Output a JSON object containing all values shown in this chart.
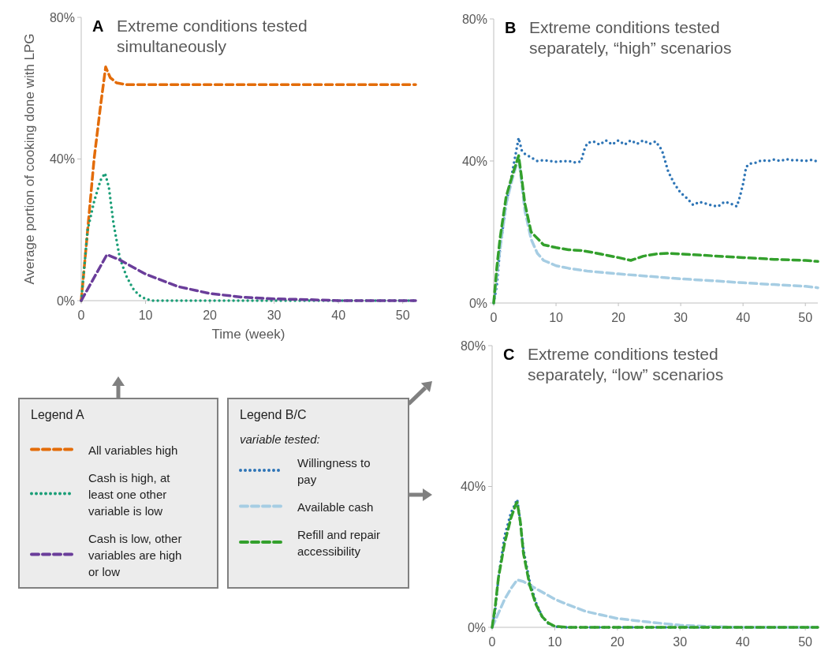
{
  "chart_data": [
    {
      "type": "line",
      "title": "Extreme conditions tested simultaneously",
      "xlabel": "Time (week)",
      "ylabel": "Average portion of cooking done with LPG",
      "annotations": [
        "A"
      ],
      "legend_title": "Legend A",
      "legend": "bottom",
      "xlim": [
        0,
        52
      ],
      "xticks": [
        0,
        10,
        20,
        30,
        40,
        50
      ],
      "ylim": [
        0,
        80
      ],
      "yticks": [
        {
          "value": 0,
          "label": "0%"
        },
        {
          "value": 40,
          "label": "40%"
        },
        {
          "value": 80,
          "label": "80%"
        }
      ],
      "series": [
        {
          "name": "All variables high",
          "color": "#e36c09",
          "line_style": "dashed",
          "x": [
            0,
            1,
            2,
            3,
            3.8,
            4.5,
            5.5,
            7,
            52
          ],
          "values": [
            0,
            20,
            40,
            55,
            66,
            63,
            61.5,
            61,
            61
          ]
        },
        {
          "name": "Cash is high, at least one other variable is low",
          "color": "#1a9e77",
          "line_style": "dotted",
          "x": [
            0,
            0.5,
            1,
            2,
            3,
            3.7,
            4.3,
            5,
            6,
            7,
            8,
            9,
            10,
            11,
            52
          ],
          "values": [
            0,
            10,
            20,
            28,
            34,
            36,
            32,
            22,
            12,
            7,
            3.5,
            1.5,
            0.5,
            0,
            0
          ]
        },
        {
          "name": "Cash is low, other variables are high or low",
          "color": "#6a3d9a",
          "line_style": "dashed",
          "x": [
            0,
            4,
            6,
            10,
            15,
            20,
            25,
            30,
            35,
            40,
            52
          ],
          "values": [
            0,
            13,
            11.5,
            7.5,
            4,
            2,
            1,
            0.5,
            0.3,
            0,
            0
          ]
        }
      ]
    },
    {
      "type": "line",
      "title": "Extreme conditions tested separately, “high” scenarios",
      "annotations": [
        "B",
        "variable tested:"
      ],
      "legend_title": "Legend B/C",
      "legend": "bottom left",
      "xlim": [
        0,
        52
      ],
      "xticks": [
        0,
        10,
        20,
        30,
        40,
        50
      ],
      "ylim": [
        0,
        80
      ],
      "yticks": [
        {
          "value": 0,
          "label": "0%"
        },
        {
          "value": 40,
          "label": "40%"
        },
        {
          "value": 80,
          "label": "80%"
        }
      ],
      "series": [
        {
          "name": "Willingness to pay",
          "color": "#2e75b6",
          "line_style": "dotted",
          "x": [
            0,
            0.5,
            1,
            2,
            3,
            4,
            4.5,
            5,
            6,
            7,
            8,
            10,
            12,
            13,
            14,
            14.5,
            15,
            16,
            17,
            18,
            19,
            20,
            21,
            22,
            23,
            24,
            25,
            26,
            27,
            28,
            29,
            30,
            31,
            32,
            33,
            34,
            35,
            36,
            37,
            38,
            39,
            39.5,
            40,
            40.5,
            41,
            42,
            43,
            44,
            45,
            46,
            47,
            48,
            49,
            50,
            51,
            52
          ],
          "values": [
            0,
            5,
            15,
            28,
            37,
            46.5,
            43,
            42,
            41,
            40,
            40.2,
            39.8,
            40,
            39.6,
            39.8,
            43,
            45,
            45.5,
            44.6,
            45.8,
            44.6,
            45.8,
            44.6,
            45.8,
            44.8,
            45.8,
            44.8,
            45.5,
            43,
            37,
            33.5,
            31,
            29.5,
            27.6,
            28.5,
            28,
            27.5,
            27.2,
            28.5,
            28,
            27.2,
            30,
            33.5,
            38.3,
            39.2,
            39.5,
            40.2,
            40,
            40.4,
            40,
            40.5,
            40.2,
            40.2,
            40,
            40.3,
            39.8
          ]
        },
        {
          "name": "Available cash",
          "color": "#a6cde3",
          "line_style": "dashed",
          "x": [
            0,
            1,
            2,
            3,
            4,
            5,
            6,
            7,
            8,
            10,
            12,
            15,
            20,
            25,
            30,
            35,
            40,
            45,
            50,
            52
          ],
          "values": [
            0,
            15,
            28,
            35,
            41,
            26,
            18,
            14,
            12,
            10.5,
            9.8,
            9,
            8.2,
            7.5,
            6.8,
            6.3,
            5.7,
            5.2,
            4.7,
            4.3
          ]
        },
        {
          "name": "Refill and repair accessibility",
          "color": "#33a02c",
          "line_style": "dashed",
          "x": [
            0,
            0.5,
            1,
            2,
            3,
            4,
            4.5,
            5,
            6,
            8,
            10,
            12,
            14,
            16,
            18,
            20,
            22,
            24,
            26,
            28,
            30,
            32,
            35,
            40,
            45,
            50,
            52
          ],
          "values": [
            0,
            10,
            18,
            30,
            36,
            41.5,
            35,
            28,
            20,
            16.4,
            15.6,
            15,
            14.8,
            14.2,
            13.5,
            12.8,
            12,
            13.2,
            13.8,
            14,
            13.8,
            13.6,
            13.3,
            12.8,
            12.3,
            12,
            11.7
          ]
        }
      ]
    },
    {
      "type": "line",
      "title": "Extreme conditions tested separately, “low” scenarios",
      "annotations": [
        "C"
      ],
      "xlim": [
        0,
        52
      ],
      "xticks": [
        0,
        10,
        20,
        30,
        40,
        50
      ],
      "ylim": [
        0,
        80
      ],
      "yticks": [
        {
          "value": 0,
          "label": "0%"
        },
        {
          "value": 40,
          "label": "40%"
        },
        {
          "value": 80,
          "label": "80%"
        }
      ],
      "series": [
        {
          "color": "#2e75b6",
          "line_style": "dotted",
          "x": [
            0,
            0.5,
            1,
            2,
            3,
            4,
            4.5,
            5,
            6,
            7,
            8,
            9,
            10,
            11,
            52
          ],
          "values": [
            0,
            5,
            14,
            26,
            32.5,
            36.3,
            30,
            22,
            13,
            7,
            3,
            1,
            0.3,
            0,
            0
          ]
        },
        {
          "color": "#a6cde3",
          "line_style": "dashed",
          "x": [
            0,
            1,
            2,
            3,
            4,
            5,
            6,
            8,
            10,
            12,
            15,
            20,
            25,
            30,
            35,
            40,
            52
          ],
          "values": [
            0,
            4,
            8,
            11,
            13.5,
            13,
            12,
            10,
            8,
            6.5,
            4.5,
            2.5,
            1.5,
            0.6,
            0.2,
            0,
            0
          ]
        },
        {
          "color": "#33a02c",
          "line_style": "dashed",
          "x": [
            0,
            0.5,
            1,
            2,
            3,
            3.8,
            4,
            4.5,
            5,
            6,
            7,
            8,
            9,
            10,
            12,
            52
          ],
          "values": [
            0,
            6,
            14,
            24,
            31,
            35,
            35.5,
            30,
            21,
            12,
            6.5,
            3,
            1.2,
            0.3,
            0,
            0
          ]
        }
      ]
    }
  ]
}
